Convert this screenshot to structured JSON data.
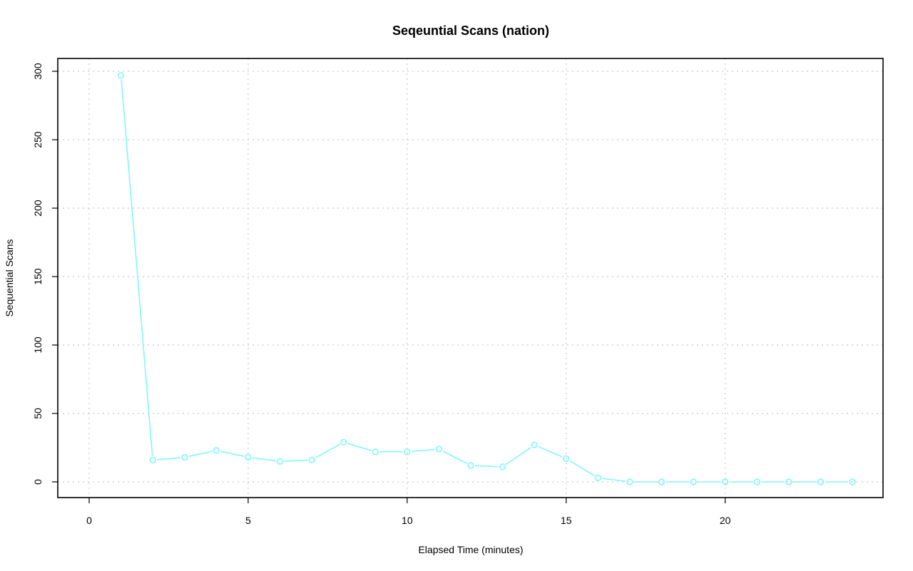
{
  "chart_data": {
    "type": "line",
    "title": "Seqeuntial Scans (nation)",
    "xlabel": "Elapsed Time (minutes)",
    "ylabel": "Sequential Scans",
    "xlim": [
      0,
      24
    ],
    "ylim": [
      0,
      300
    ],
    "xticks": [
      0,
      5,
      10,
      15,
      20
    ],
    "yticks": [
      0,
      50,
      100,
      150,
      200,
      250,
      300
    ],
    "grid": true,
    "series": [
      {
        "color": "#7ff8f8",
        "x": [
          1,
          2,
          3,
          4,
          5,
          6,
          7,
          8,
          9,
          10,
          11,
          12,
          13,
          14,
          15,
          16,
          17,
          18,
          19,
          20,
          21,
          22,
          23,
          24
        ],
        "values": [
          297,
          16,
          18,
          23,
          18,
          15,
          16,
          29,
          22,
          22,
          24,
          12,
          11,
          27,
          17,
          3,
          0,
          0,
          0,
          0,
          0,
          0,
          0,
          0
        ]
      }
    ]
  }
}
